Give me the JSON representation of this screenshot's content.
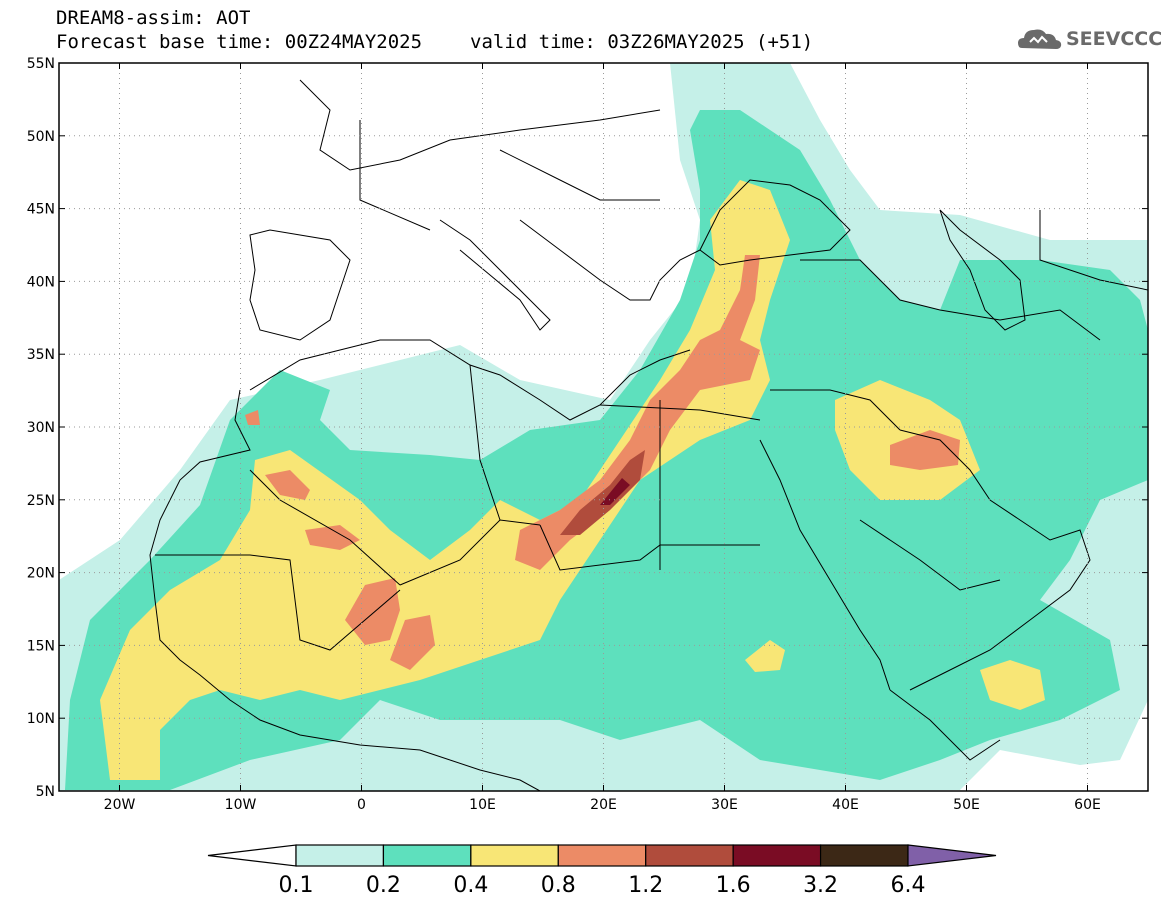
{
  "header": {
    "model_line": "DREAM8-assim: AOT",
    "base_time": "Forecast base time: 00Z24MAY2025",
    "valid_time": "valid time: 03Z26MAY2025 (+51)"
  },
  "logo": {
    "text": "SEEVCCC",
    "icon": "cloud-icon"
  },
  "map": {
    "lon_ticks": [
      "20W",
      "10W",
      "0",
      "10E",
      "20E",
      "30E",
      "40E",
      "50E",
      "60E"
    ],
    "lat_ticks": [
      "55N",
      "50N",
      "45N",
      "40N",
      "35N",
      "30N",
      "25N",
      "20N",
      "15N",
      "10N",
      "5N"
    ],
    "lon_range": [
      -25,
      65
    ],
    "lat_range": [
      5,
      55
    ],
    "grid": "dotted"
  },
  "colorbar": {
    "labels": [
      "0.1",
      "0.2",
      "0.4",
      "0.8",
      "1.2",
      "1.6",
      "3.2",
      "6.4"
    ],
    "colors": [
      "#c5f0e8",
      "#5ee0bd",
      "#f8e676",
      "#ec8b66",
      "#b04c3c",
      "#7a0c24",
      "#3c2816",
      "#8060a8"
    ],
    "extend": "both"
  }
}
